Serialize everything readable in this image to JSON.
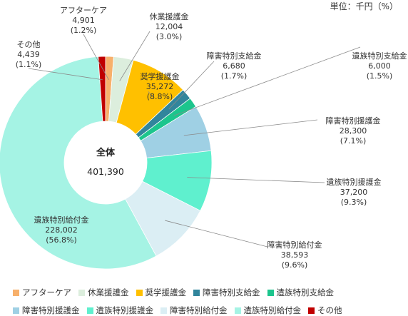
{
  "unit_note": "単位：千円（%）",
  "chart_data": {
    "type": "pie",
    "variant": "donut",
    "center_label": "全体",
    "center_total": "401,390",
    "legend_position": "bottom",
    "slices": [
      {
        "name": "アフターケア",
        "value": 4901,
        "value_label": "4,901",
        "percent_label": "(1.2%)",
        "color": "#f7b06b"
      },
      {
        "name": "休業援護金",
        "value": 12004,
        "value_label": "12,004",
        "percent_label": "(3.0%)",
        "color": "#dceedd"
      },
      {
        "name": "奨学援護金",
        "value": 35272,
        "value_label": "35,272",
        "percent_label": "(8.8%)",
        "color": "#ffc000"
      },
      {
        "name": "障害特別支給金",
        "value": 6680,
        "value_label": "6,680",
        "percent_label": "(1.7%)",
        "color": "#31859c"
      },
      {
        "name": "遺族特別支給金",
        "value": 6000,
        "value_label": "6,000",
        "percent_label": "(1.5%)",
        "color": "#1cc58d"
      },
      {
        "name": "障害特別援護金",
        "value": 28300,
        "value_label": "28,300",
        "percent_label": "(7.1%)",
        "color": "#9fd0e4"
      },
      {
        "name": "遺族特別援護金",
        "value": 37200,
        "value_label": "37,200",
        "percent_label": "(9.3%)",
        "color": "#5ff0ce"
      },
      {
        "name": "障害特別給付金",
        "value": 38593,
        "value_label": "38,593",
        "percent_label": "(9.6%)",
        "color": "#dbeef4"
      },
      {
        "name": "遺族特別給付金",
        "value": 228002,
        "value_label": "228,002",
        "percent_label": "(56.8%)",
        "color": "#a5f3e4"
      },
      {
        "name": "その他",
        "value": 4439,
        "value_label": "4,439",
        "percent_label": "(1.1%)",
        "color": "#c00000"
      }
    ]
  }
}
